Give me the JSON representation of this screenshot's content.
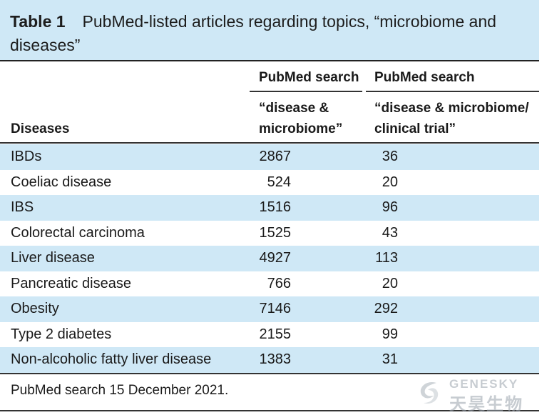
{
  "caption": {
    "label": "Table 1",
    "title": "PubMed-listed articles regarding topics, “microbiome and diseases”"
  },
  "header": {
    "col1": "Diseases",
    "col2_top": "PubMed search",
    "col2_bottom_line1": "“disease &",
    "col2_bottom_line2": "microbiome”",
    "col3_top": "PubMed search",
    "col3_bottom_line1": "“disease & microbiome/",
    "col3_bottom_line2": "clinical trial”"
  },
  "rows": [
    {
      "disease": "IBDs",
      "microbiome": "2867",
      "clinical_trial": "36"
    },
    {
      "disease": "Coeliac disease",
      "microbiome": "524",
      "clinical_trial": "20"
    },
    {
      "disease": "IBS",
      "microbiome": "1516",
      "clinical_trial": "96"
    },
    {
      "disease": "Colorectal carcinoma",
      "microbiome": "1525",
      "clinical_trial": "43"
    },
    {
      "disease": "Liver disease",
      "microbiome": "4927",
      "clinical_trial": "113"
    },
    {
      "disease": "Pancreatic disease",
      "microbiome": "766",
      "clinical_trial": "20"
    },
    {
      "disease": "Obesity",
      "microbiome": "7146",
      "clinical_trial": "292"
    },
    {
      "disease": "Type 2 diabetes",
      "microbiome": "2155",
      "clinical_trial": "99"
    },
    {
      "disease": "Non-alcoholic fatty liver disease",
      "microbiome": "1383",
      "clinical_trial": "31"
    }
  ],
  "footnote": "PubMed search 15 December 2021.",
  "watermark": {
    "en": "GENESKY",
    "cn": "天昊生物"
  },
  "colors": {
    "row_shade": "#cfe8f6",
    "rule": "#333333"
  }
}
